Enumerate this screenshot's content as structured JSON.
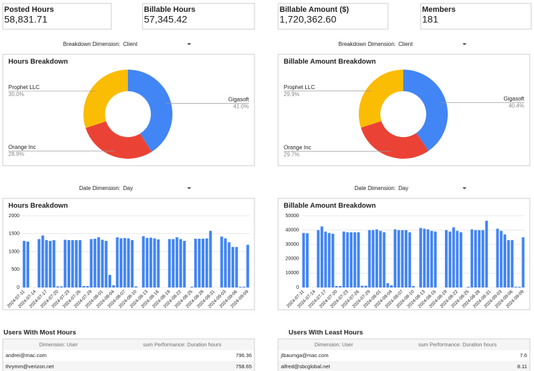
{
  "scorecards": [
    {
      "label": "Posted Hours",
      "value": "58,831.71"
    },
    {
      "label": "Billable Hours",
      "value": "57,345.42"
    },
    {
      "label": "Billable Amount ($)",
      "value": "1,720,362.60"
    },
    {
      "label": "Members",
      "value": "181"
    }
  ],
  "dropdowns": [
    {
      "label": "Breakdown Dimension:",
      "value": "Client"
    },
    {
      "label": "Breakdown Dimension:",
      "value": "Client"
    },
    {
      "label": "Date Dimension:",
      "value": "Day"
    },
    {
      "label": "Date Dimension:",
      "value": "Day"
    }
  ],
  "chart_data": [
    {
      "type": "pie",
      "title": "Hours Breakdown",
      "categories": [
        "Gigasoft",
        "Orange Inc",
        "Prophet LLC"
      ],
      "values": [
        41.0,
        28.9,
        30.0
      ],
      "value_labels": [
        "41.0%",
        "28.9%",
        "30.0%"
      ],
      "colors": [
        "#4285f4",
        "#ea4335",
        "#fbbc04"
      ]
    },
    {
      "type": "pie",
      "title": "Billable Amount Breakdown",
      "categories": [
        "Gigasoft",
        "Orange Inc",
        "Prophet LLC"
      ],
      "values": [
        40.4,
        29.7,
        29.9
      ],
      "value_labels": [
        "40.4%",
        "29.7%",
        "29.9%"
      ],
      "colors": [
        "#4285f4",
        "#ea4335",
        "#fbbc04"
      ]
    },
    {
      "type": "bar",
      "title": "Hours Breakdown",
      "color": "#4285f4",
      "grid": true,
      "ylim": [
        0,
        2000
      ],
      "yticks": [
        0,
        500,
        1000,
        1500,
        2000
      ],
      "categories": [
        "2024-07-11",
        null,
        null,
        "2024-07-14",
        null,
        null,
        "2024-07-17",
        null,
        null,
        "2024-07-20",
        null,
        null,
        "2024-07-23",
        null,
        null,
        "2024-07-26",
        null,
        null,
        "2024-07-29",
        null,
        null,
        "2024-08-01",
        null,
        null,
        "2024-08-04",
        null,
        null,
        "2024-08-07",
        null,
        null,
        "2024-08-10",
        null,
        null,
        "2024-08-13",
        null,
        null,
        "2024-08-16",
        null,
        null,
        "2024-08-19",
        null,
        null,
        "2024-08-22",
        null,
        null,
        "2024-08-25",
        null,
        null,
        "2024-08-28",
        null,
        null,
        "2024-08-31",
        null,
        null,
        "2024-09-03",
        null,
        null,
        "2024-09-06",
        null,
        null,
        "2024-09-09"
      ],
      "values": [
        1300,
        1280,
        0,
        0,
        1350,
        1450,
        1320,
        1300,
        1320,
        30,
        30,
        1330,
        1320,
        1320,
        1320,
        1320,
        40,
        40,
        1350,
        1360,
        1400,
        1330,
        1300,
        350,
        60,
        1400,
        1370,
        1380,
        1370,
        1320,
        30,
        0,
        1430,
        1380,
        1390,
        1370,
        1340,
        0,
        0,
        1350,
        1350,
        1400,
        1350,
        1300,
        0,
        20,
        1360,
        1360,
        1360,
        1370,
        1580,
        0,
        0,
        1420,
        1370,
        1260,
        1130,
        1130,
        20,
        20,
        1190
      ]
    },
    {
      "type": "bar",
      "title": "Billable Amount Breakdown",
      "color": "#4285f4",
      "grid": true,
      "ylim": [
        0,
        50000
      ],
      "yticks": [
        0,
        10000,
        20000,
        30000,
        40000,
        50000
      ],
      "categories": [
        "2024-07-11",
        null,
        null,
        "2024-07-14",
        null,
        null,
        "2024-07-17",
        null,
        null,
        "2024-07-20",
        null,
        null,
        "2024-07-23",
        null,
        null,
        "2024-07-26",
        null,
        null,
        "2024-07-29",
        null,
        null,
        "2024-08-01",
        null,
        null,
        "2024-08-04",
        null,
        null,
        "2024-08-07",
        null,
        null,
        "2024-08-10",
        null,
        null,
        "2024-08-13",
        null,
        null,
        "2024-08-16",
        null,
        null,
        "2024-08-19",
        null,
        null,
        "2024-08-22",
        null,
        null,
        "2024-08-25",
        null,
        null,
        "2024-08-28",
        null,
        null,
        "2024-08-31",
        null,
        null,
        "2024-09-03",
        null,
        null,
        "2024-09-06",
        null,
        null,
        "2024-09-09"
      ],
      "values": [
        38000,
        37800,
        0,
        0,
        40000,
        42500,
        39000,
        38000,
        37500,
        1000,
        1000,
        39000,
        38500,
        38500,
        38500,
        38500,
        1200,
        1200,
        40000,
        40000,
        40500,
        39500,
        38500,
        3000,
        1500,
        40500,
        40000,
        40000,
        40000,
        38500,
        1000,
        0,
        41500,
        41000,
        40500,
        39500,
        39000,
        0,
        0,
        40000,
        39000,
        42000,
        39500,
        38500,
        0,
        500,
        40500,
        40000,
        40000,
        40000,
        46500,
        0,
        0,
        41000,
        39500,
        37000,
        33000,
        33000,
        500,
        500,
        35000
      ]
    }
  ],
  "tables": [
    {
      "title": "Users With Most Hours",
      "columns": [
        "Dimension: User",
        "sum Performance: Duration hours"
      ],
      "rows": [
        [
          "andrei@mac.com",
          "796.36"
        ],
        [
          "thrymm@verizon.net",
          "758.65"
        ]
      ]
    },
    {
      "title": "Users With Least Hours",
      "columns": [
        "Dimension: User",
        "sum Performance: Duration hours"
      ],
      "rows": [
        [
          "jlbaumga@mac.com",
          "7.6"
        ],
        [
          "alfred@sbcglobal.net",
          "8.11"
        ]
      ]
    }
  ]
}
